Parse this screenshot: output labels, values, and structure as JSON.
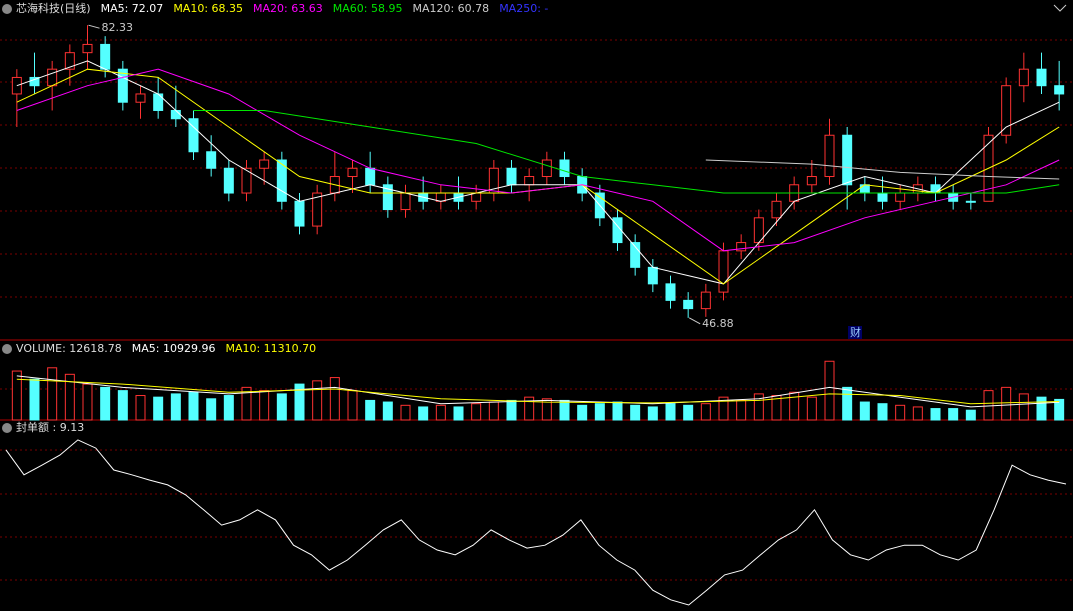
{
  "chart_data": [
    {
      "type": "candlestick",
      "title": "芯海科技(日线)",
      "ylim": [
        44.2,
        83.2
      ],
      "up_color": "#ff3232",
      "down_color": "#54ffff",
      "open": [
        74,
        76,
        75,
        77,
        79,
        80,
        77,
        73,
        74,
        72,
        71,
        67,
        65,
        62,
        65,
        66,
        61,
        58,
        62,
        64,
        65,
        63,
        60,
        62,
        61,
        62,
        61,
        62,
        65,
        63,
        64,
        66,
        64,
        62,
        59,
        56,
        53,
        51,
        49,
        48,
        50,
        55,
        56,
        59,
        61,
        63,
        64,
        69,
        63,
        62,
        61,
        62,
        63,
        62,
        61,
        61,
        69,
        75,
        77,
        75
      ],
      "high": [
        77,
        79,
        78,
        80,
        82.33,
        81,
        78,
        75,
        76,
        75,
        72,
        69,
        66,
        66,
        67,
        67,
        62,
        63,
        67,
        66,
        67,
        64,
        63,
        64,
        63,
        64,
        63,
        66,
        66,
        65,
        67,
        67,
        65,
        63,
        60,
        57,
        54,
        52,
        50,
        51,
        56,
        57,
        60,
        62,
        64,
        66,
        71,
        70,
        64,
        64,
        63,
        64,
        64,
        63,
        62,
        70,
        76,
        79,
        79,
        78
      ],
      "low": [
        70,
        74,
        72,
        75,
        77,
        76,
        72,
        71,
        71,
        70,
        66,
        64,
        61,
        61,
        63,
        60,
        57,
        57,
        61,
        62,
        62,
        59,
        59,
        60,
        60,
        60,
        60,
        61,
        62,
        61,
        63,
        63,
        61,
        58,
        55,
        52,
        50,
        48,
        46.88,
        47,
        49,
        54,
        55,
        58,
        60,
        62,
        63,
        60,
        61,
        60,
        60,
        61,
        61,
        60,
        60,
        61,
        68,
        73,
        74,
        72
      ],
      "close": [
        76,
        75,
        77,
        79,
        80,
        77,
        73,
        74,
        72,
        71,
        67,
        65,
        62,
        65,
        66,
        61,
        58,
        62,
        64,
        65,
        63,
        60,
        62,
        61,
        62,
        61,
        62,
        65,
        63,
        64,
        66,
        64,
        62,
        59,
        56,
        53,
        51,
        49,
        48,
        50,
        55,
        56,
        59,
        61,
        63,
        64,
        69,
        63,
        62,
        61,
        62,
        63,
        62,
        61,
        61,
        69,
        75,
        77,
        75,
        74
      ],
      "max_label": "82.33",
      "min_label": "46.88",
      "event_label": "财",
      "series": [
        {
          "name": "MA5: 72.07",
          "color": "#ffffff",
          "x": [
            0,
            4,
            8,
            12,
            16,
            20,
            24,
            28,
            32,
            36,
            40,
            44,
            48,
            52,
            56,
            59
          ],
          "values": [
            75,
            78,
            74,
            66,
            61,
            63,
            61,
            63,
            63,
            53,
            51,
            61,
            64,
            62,
            70,
            73
          ]
        },
        {
          "name": "MA10: 68.35",
          "color": "#ffff00",
          "x": [
            0,
            4,
            8,
            12,
            16,
            20,
            24,
            28,
            32,
            36,
            40,
            44,
            48,
            52,
            56,
            59
          ],
          "values": [
            73,
            77,
            76,
            70,
            64,
            62,
            62,
            62,
            63,
            57,
            51,
            57,
            63,
            62,
            66,
            70
          ]
        },
        {
          "name": "MA20: 63.63",
          "color": "#ff00ff",
          "x": [
            0,
            4,
            8,
            12,
            16,
            20,
            24,
            28,
            32,
            36,
            40,
            44,
            48,
            52,
            56,
            59
          ],
          "values": [
            72,
            75,
            77,
            74,
            69,
            65,
            63,
            62,
            63,
            61,
            55,
            56,
            59,
            61,
            63,
            66
          ]
        },
        {
          "name": "MA60: 58.95",
          "color": "#00e600",
          "x": [
            10,
            14,
            20,
            26,
            32,
            36,
            40,
            44,
            48,
            52,
            56,
            59
          ],
          "values": [
            72,
            72,
            70,
            68,
            64,
            63,
            62,
            62,
            62,
            62,
            62,
            63
          ]
        },
        {
          "name": "MA120: 60.78",
          "color": "#cccccc",
          "x": [
            39,
            45,
            50,
            55,
            59
          ],
          "values": [
            66,
            65.5,
            64.5,
            64,
            63.7
          ]
        },
        {
          "name": "MA250: -",
          "color": "#3333ff"
        }
      ]
    },
    {
      "type": "bar",
      "title": "VOLUME: 12618.78",
      "ylim": [
        0,
        38000
      ],
      "values": [
        30000,
        25000,
        32000,
        28000,
        22000,
        20000,
        18000,
        15000,
        14000,
        16000,
        17000,
        13000,
        15000,
        20000,
        18000,
        16000,
        22000,
        24000,
        26000,
        18000,
        12000,
        11000,
        9000,
        8000,
        9000,
        8000,
        10000,
        11000,
        12000,
        14000,
        13000,
        12000,
        9000,
        10000,
        11000,
        9000,
        8000,
        10000,
        9000,
        10000,
        14000,
        12000,
        16000,
        15000,
        17000,
        14000,
        36000,
        20000,
        11000,
        10000,
        9000,
        8000,
        7000,
        7000,
        6000,
        18000,
        20000,
        16000,
        14000,
        12618.78
      ],
      "series": [
        {
          "name": "MA5: 10929.96",
          "color": "#ffffff",
          "x": [
            0,
            6,
            12,
            18,
            24,
            30,
            36,
            42,
            46,
            50,
            54,
            59
          ],
          "values": [
            27000,
            20000,
            16000,
            20000,
            10000,
            12000,
            10000,
            13000,
            20000,
            14000,
            8000,
            10929.96
          ]
        },
        {
          "name": "MA10: 11310.70",
          "color": "#ffff00",
          "x": [
            0,
            6,
            12,
            18,
            24,
            30,
            36,
            42,
            46,
            50,
            54,
            59
          ],
          "values": [
            25000,
            22000,
            17000,
            19000,
            13000,
            11000,
            10500,
            12000,
            16000,
            15000,
            10000,
            11310.7
          ]
        }
      ]
    },
    {
      "type": "line",
      "title": "封单额 : 9.13",
      "ylim": [
        -25,
        25
      ],
      "color": "#ffffff",
      "values": [
        18.3,
        11.6,
        14.2,
        16.9,
        21.0,
        18.8,
        12.9,
        11.6,
        10.2,
        8.9,
        6.2,
        2.2,
        -1.9,
        -0.5,
        2.2,
        -0.5,
        -7.3,
        -9.9,
        -14.0,
        -11.3,
        -7.3,
        -3.2,
        -0.5,
        -5.9,
        -8.6,
        -9.9,
        -7.3,
        -3.2,
        -5.9,
        -8.1,
        -7.3,
        -4.6,
        -0.5,
        -7.3,
        -11.3,
        -14.0,
        -19.4,
        -22.0,
        -23.4,
        -19.4,
        -15.3,
        -14.0,
        -9.9,
        -5.9,
        -3.2,
        2.2,
        -5.9,
        -9.9,
        -11.3,
        -8.6,
        -7.3,
        -7.3,
        -9.9,
        -11.3,
        -8.6,
        2.2,
        14.2,
        11.6,
        10.2,
        9.13
      ]
    }
  ]
}
